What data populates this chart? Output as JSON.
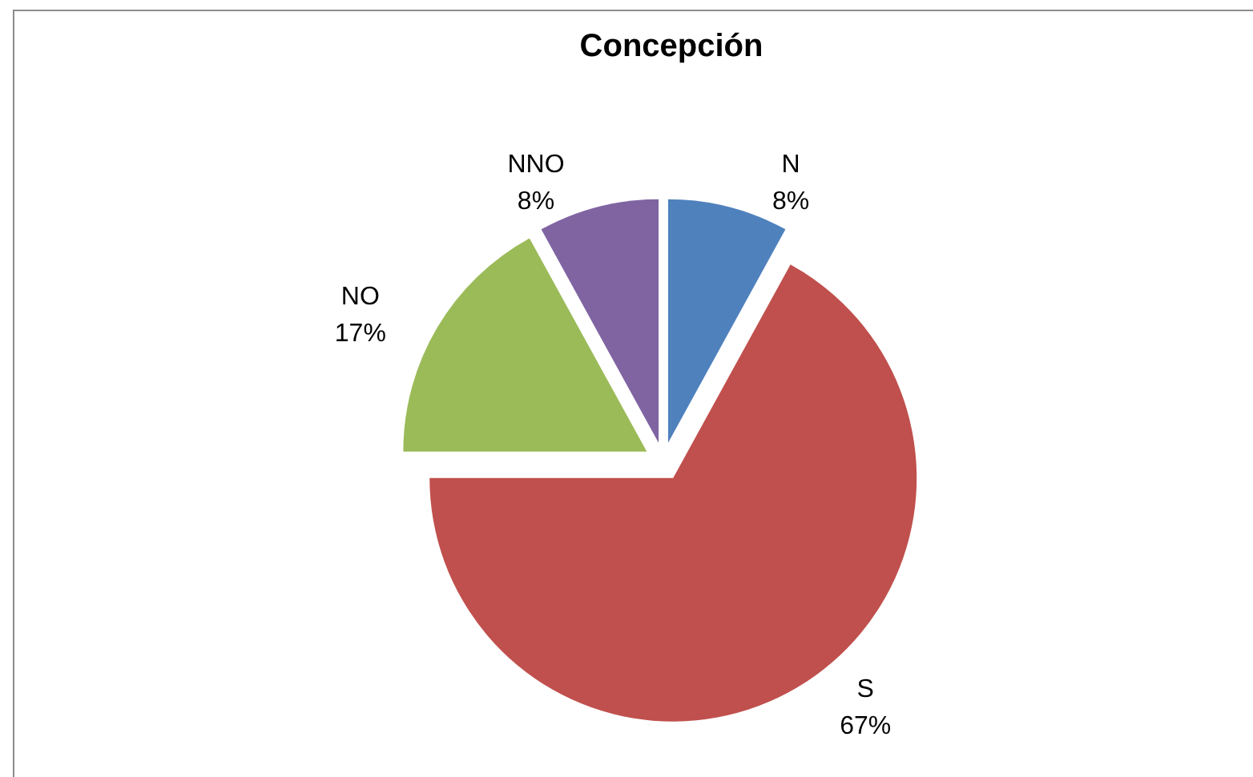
{
  "chart_data": {
    "type": "pie",
    "title": "Concepción",
    "categories": [
      "N",
      "S",
      "NO",
      "NNO"
    ],
    "values": [
      8,
      67,
      17,
      8
    ],
    "colors": [
      "#4f81bd",
      "#c0504d",
      "#9bbb59",
      "#8064a2"
    ],
    "value_labels": [
      "8%",
      "67%",
      "17%",
      "8%"
    ]
  }
}
